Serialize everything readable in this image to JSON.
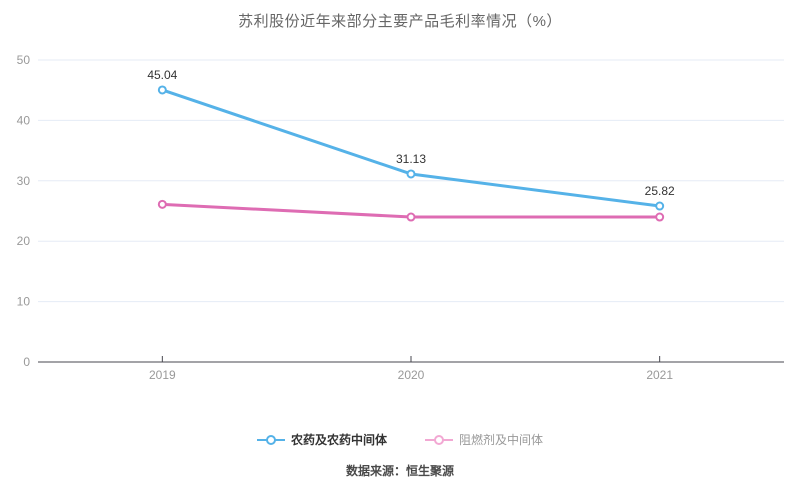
{
  "chart_data": {
    "type": "line",
    "title": "苏利股份近年来部分主要产品毛利率情况（%）",
    "categories": [
      "2019",
      "2020",
      "2021"
    ],
    "series": [
      {
        "name": "农药及农药中间体",
        "values": [
          45.04,
          31.13,
          25.82
        ],
        "labels": [
          "45.04",
          "31.13",
          "25.82"
        ],
        "show_labels": true,
        "color": "#55B2E8"
      },
      {
        "name": "阻燃剂及中间体",
        "values": [
          26.1,
          24.0,
          24.0
        ],
        "labels": [],
        "show_labels": false,
        "color": "#DE6CB3"
      }
    ],
    "xlabel": "",
    "ylabel": "",
    "ylim": [
      0,
      50
    ],
    "yticks": [
      0,
      10,
      20,
      30,
      40,
      50
    ],
    "grid": true,
    "legend_position": "bottom"
  },
  "legend": {
    "items": [
      {
        "label": "农药及农药中间体",
        "icon": "line-circle-icon",
        "color": "#55B2E8",
        "text_color": "#333333"
      },
      {
        "label": "阻燃剂及中间体",
        "icon": "line-circle-icon",
        "color": "#F2A8D3",
        "text_color": "#999999"
      }
    ]
  },
  "footer": {
    "source": "数据来源：恒生聚源"
  },
  "colors": {
    "background": "#ffffff",
    "title": "#666666",
    "grid_line": "#E5EBF6",
    "axis_line": "#47474F",
    "tick_label": "#999999",
    "value_label": "#333333",
    "marker_fill": "#ffffff"
  }
}
